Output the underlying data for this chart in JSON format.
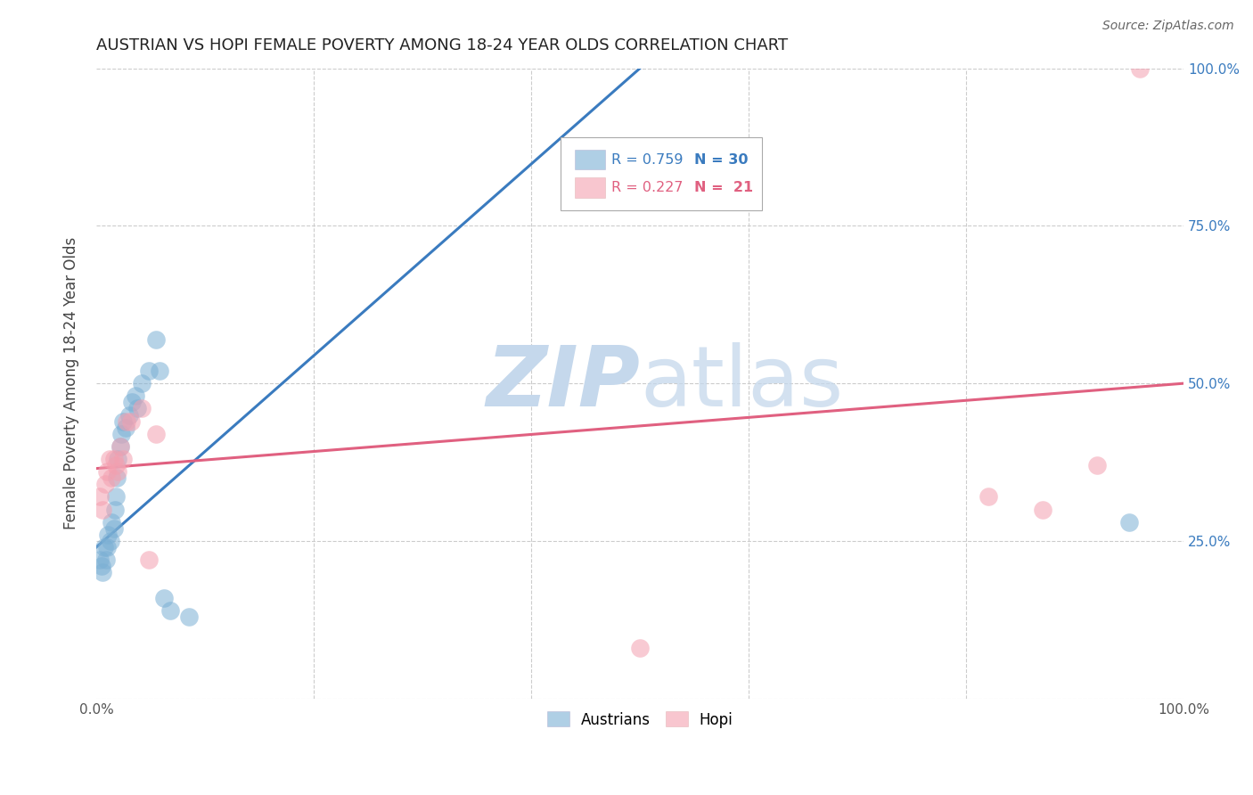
{
  "title": "AUSTRIAN VS HOPI FEMALE POVERTY AMONG 18-24 YEAR OLDS CORRELATION CHART",
  "source": "Source: ZipAtlas.com",
  "ylabel": "Female Poverty Among 18-24 Year Olds",
  "xlim": [
    0,
    1
  ],
  "ylim": [
    0,
    1
  ],
  "ytick_positions": [
    0.0,
    0.25,
    0.5,
    0.75,
    1.0
  ],
  "blue_color": "#7bafd4",
  "pink_color": "#f4a0b0",
  "blue_line_color": "#3a7bbf",
  "pink_line_color": "#e06080",
  "legend_blue_R": "R = 0.759",
  "legend_blue_N": "N = 30",
  "legend_pink_R": "R = 0.227",
  "legend_pink_N": "N =  21",
  "legend_label_blue": "Austrians",
  "legend_label_pink": "Hopi",
  "watermark_zip": "ZIP",
  "watermark_atlas": "atlas",
  "watermark_color": "#c5d8ec",
  "austrians_x": [
    0.003,
    0.005,
    0.006,
    0.007,
    0.009,
    0.01,
    0.011,
    0.013,
    0.014,
    0.016,
    0.017,
    0.018,
    0.019,
    0.02,
    0.022,
    0.023,
    0.025,
    0.027,
    0.03,
    0.033,
    0.036,
    0.038,
    0.042,
    0.048,
    0.055,
    0.058,
    0.062,
    0.068,
    0.085,
    0.95
  ],
  "austrians_y": [
    0.22,
    0.21,
    0.2,
    0.24,
    0.22,
    0.24,
    0.26,
    0.25,
    0.28,
    0.27,
    0.3,
    0.32,
    0.35,
    0.38,
    0.4,
    0.42,
    0.44,
    0.43,
    0.45,
    0.47,
    0.48,
    0.46,
    0.5,
    0.52,
    0.57,
    0.52,
    0.16,
    0.14,
    0.13,
    0.28
  ],
  "hopi_x": [
    0.003,
    0.006,
    0.008,
    0.01,
    0.012,
    0.014,
    0.016,
    0.018,
    0.02,
    0.022,
    0.025,
    0.028,
    0.032,
    0.042,
    0.048,
    0.055,
    0.82,
    0.87,
    0.5,
    0.92,
    0.96
  ],
  "hopi_y": [
    0.32,
    0.3,
    0.34,
    0.36,
    0.38,
    0.35,
    0.38,
    0.37,
    0.36,
    0.4,
    0.38,
    0.44,
    0.44,
    0.46,
    0.22,
    0.42,
    0.32,
    0.3,
    0.08,
    0.37,
    1.0
  ],
  "blue_trend_x0": 0.0,
  "blue_trend_y0": 0.24,
  "blue_trend_x1": 0.5,
  "blue_trend_y1": 1.0,
  "pink_trend_x0": 0.0,
  "pink_trend_y0": 0.365,
  "pink_trend_x1": 1.0,
  "pink_trend_y1": 0.5
}
